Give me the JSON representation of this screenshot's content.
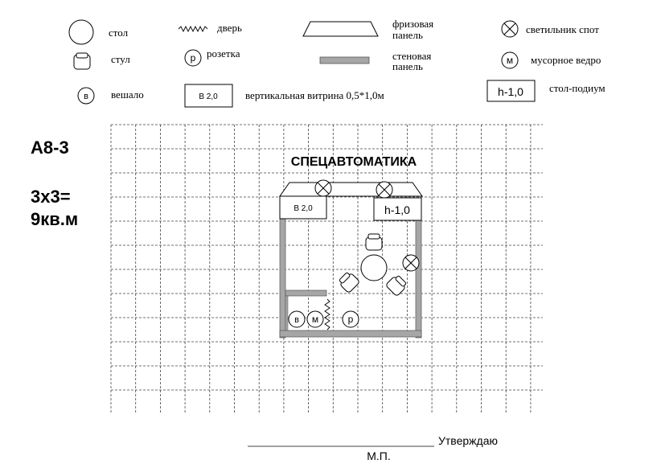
{
  "legend": {
    "table": "стол",
    "door": "дверь",
    "frieze_line1": "фризовая",
    "frieze_line2": "панель",
    "spotlight": "светильник спот",
    "chair": "стул",
    "socket": "розетка",
    "socket_symbol": "р",
    "wall_line1": "стеновая",
    "wall_line2": "панель",
    "bin": "мусорное ведро",
    "bin_symbol": "м",
    "hanger_symbol": "в",
    "hanger": "вешало",
    "showcase_box": "В 2,0",
    "showcase": "вертикальная витрина 0,5*1,0м",
    "podium_box": "h-1,0",
    "podium": "стол-подиум"
  },
  "stand": {
    "code": "А8-3",
    "size_line1": "3х3=",
    "size_line2": "9кв.м",
    "company": "СПЕЦАВТОМАТИКА",
    "showcase_label": "В 2,0",
    "podium_label": "h-1,0",
    "hanger_symbol": "в",
    "bin_symbol": "м",
    "socket_symbol": "р"
  },
  "footer": {
    "approve": "Утверждаю",
    "stamp": "М.П."
  }
}
